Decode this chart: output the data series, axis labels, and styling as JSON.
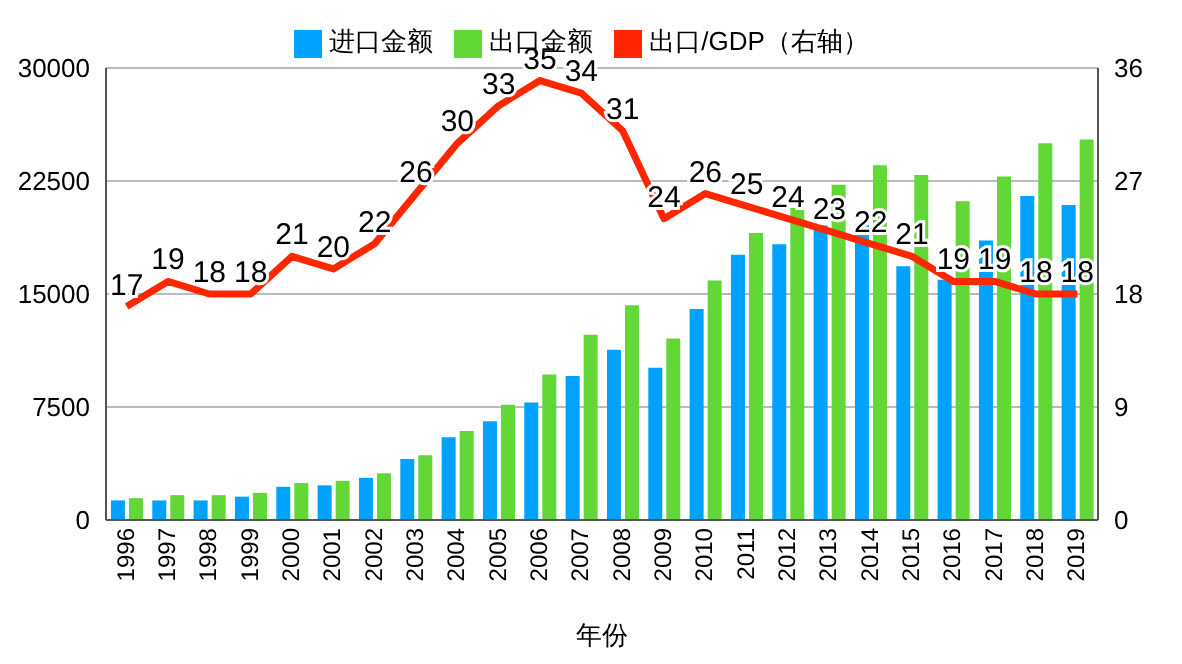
{
  "chart_data": {
    "type": "bar",
    "xlabel": "年份",
    "categories": [
      "1996",
      "1997",
      "1998",
      "1999",
      "2000",
      "2001",
      "2002",
      "2003",
      "2004",
      "2005",
      "2006",
      "2007",
      "2008",
      "2009",
      "2010",
      "2011",
      "2012",
      "2013",
      "2014",
      "2015",
      "2016",
      "2017",
      "2018",
      "2019"
    ],
    "series": [
      {
        "name": "进口金额",
        "color": "#00a2ff",
        "values": [
          1300,
          1300,
          1300,
          1550,
          2200,
          2300,
          2800,
          4050,
          5500,
          6550,
          7800,
          9550,
          11300,
          10100,
          14000,
          17600,
          18300,
          19550,
          19600,
          16850,
          15950,
          18550,
          21500,
          20900
        ]
      },
      {
        "name": "出口金额",
        "color": "#61d836",
        "values": [
          1450,
          1650,
          1650,
          1800,
          2450,
          2600,
          3100,
          4300,
          5900,
          7650,
          9650,
          12300,
          14250,
          12050,
          15900,
          19050,
          20700,
          22250,
          23550,
          22900,
          21150,
          22800,
          25000,
          25250
        ]
      },
      {
        "name": "出口/GDP（右轴）",
        "type": "line",
        "axis": "y2",
        "color": "#ff2600",
        "data_labels": true,
        "values": [
          17,
          19,
          18,
          18,
          21,
          20,
          22,
          26,
          30,
          33,
          35,
          34,
          31,
          24,
          26,
          25,
          24,
          23,
          22,
          21,
          19,
          19,
          18,
          18
        ]
      }
    ],
    "ylim": [
      0,
      30000
    ],
    "yticks": [
      0,
      7500,
      15000,
      22500,
      30000
    ],
    "y2lim": [
      0,
      36
    ],
    "y2ticks": [
      0,
      9,
      18,
      27,
      36
    ],
    "grid": "y",
    "legend": "top",
    "marker": "none",
    "line_style": "solid"
  }
}
